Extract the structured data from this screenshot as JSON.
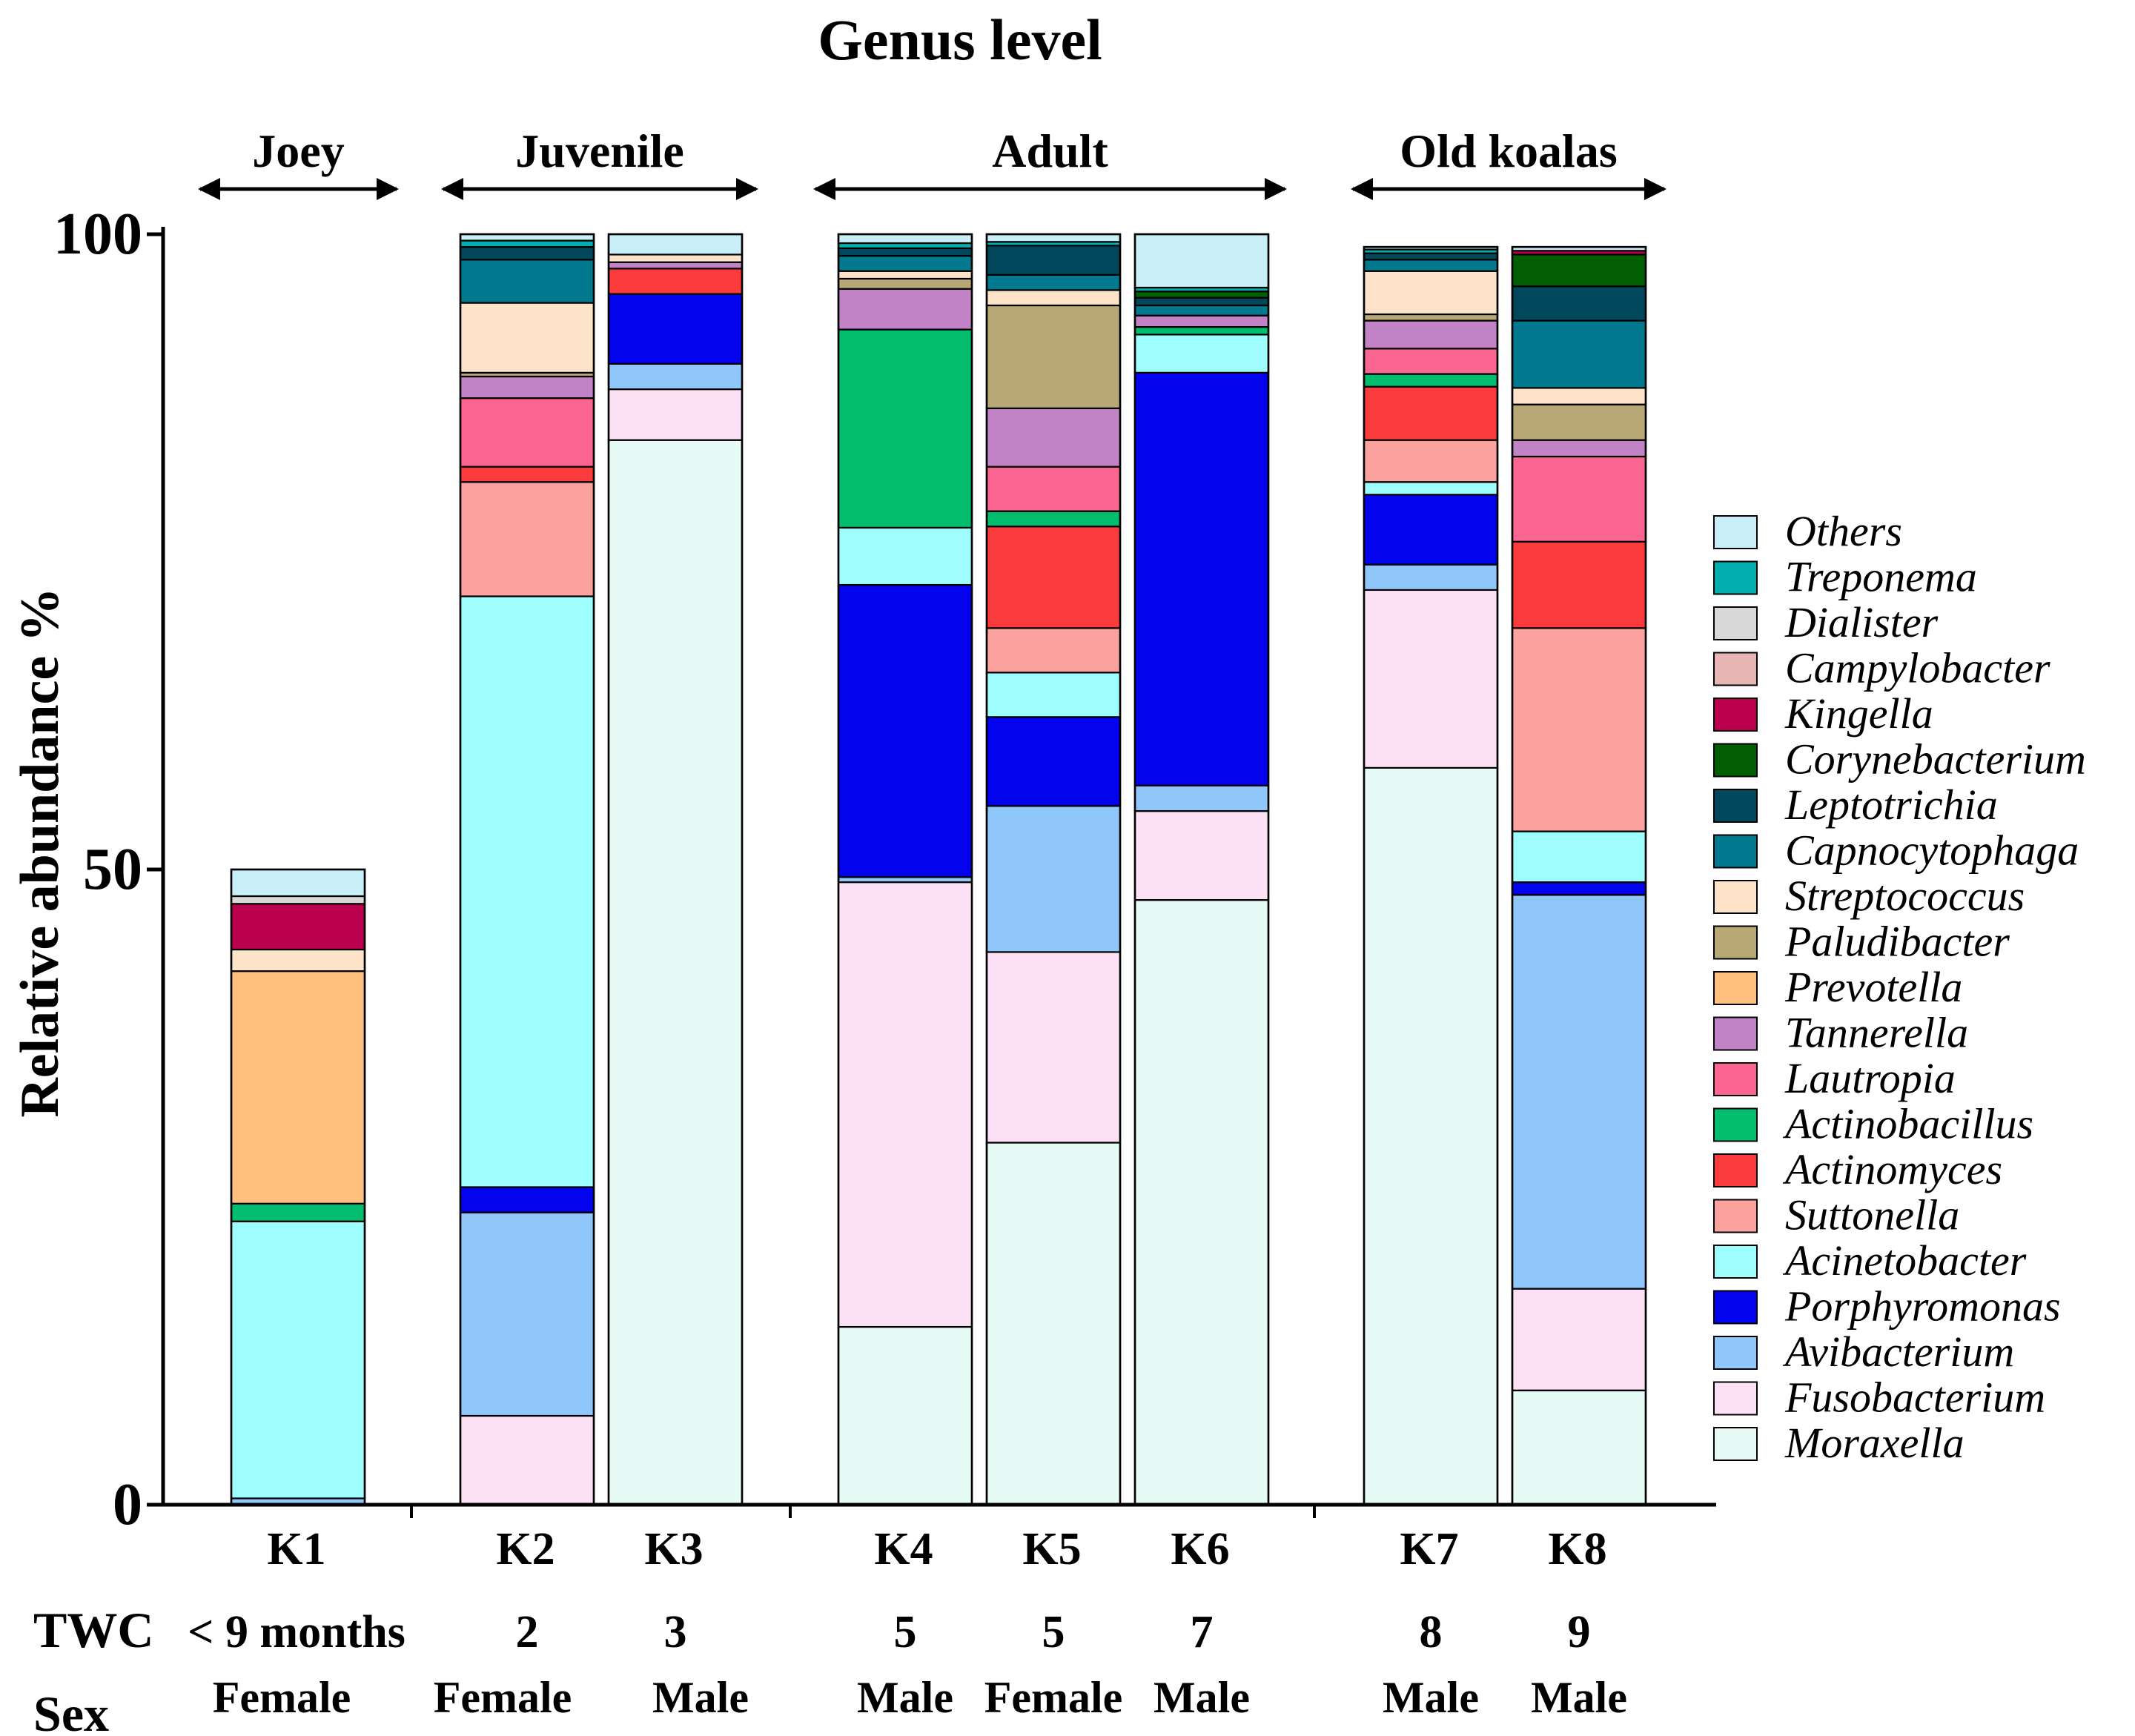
{
  "chart_data": {
    "type": "bar",
    "stacked": true,
    "title": "Genus level",
    "ylabel": "Relative abundance %",
    "ylim": [
      0,
      100
    ],
    "yticks": [
      "0",
      "50",
      "100"
    ],
    "categories": [
      "K1",
      "K2",
      "K3",
      "K4",
      "K5",
      "K6",
      "K7",
      "K8"
    ],
    "groups": [
      {
        "label": "Joey",
        "members": [
          "K1"
        ]
      },
      {
        "label": "Juvenile",
        "members": [
          "K2",
          "K3"
        ]
      },
      {
        "label": "Adult",
        "members": [
          "K4",
          "K5",
          "K6"
        ]
      },
      {
        "label": "Old koalas",
        "members": [
          "K7",
          "K8"
        ]
      }
    ],
    "info_rows": [
      {
        "label": "TWC",
        "values": [
          "< 9  months",
          "2",
          "3",
          "5",
          "5",
          "7",
          "8",
          "9"
        ]
      },
      {
        "label": "Sex",
        "values": [
          "Female",
          "Female",
          "Male",
          "Male",
          "Female",
          "Male",
          "Male",
          "Male"
        ]
      }
    ],
    "legend_position": "right",
    "series": [
      {
        "name": "Moraxella",
        "color": "#E6FBF5",
        "values": [
          0,
          0,
          83.8,
          14,
          28.5,
          47.6,
          58,
          9
        ]
      },
      {
        "name": "Fusobacterium",
        "color": "#FCE1F6",
        "values": [
          0,
          7,
          4,
          35,
          15,
          7,
          14,
          8
        ]
      },
      {
        "name": "Avibacterium",
        "color": "#8FC7FB",
        "values": [
          0.5,
          16,
          2,
          0.4,
          11.5,
          2,
          2,
          31
        ]
      },
      {
        "name": "Porphyromonas",
        "color": "#0303EE",
        "values": [
          0,
          2,
          5.5,
          23,
          7,
          32.5,
          5.5,
          1
        ]
      },
      {
        "name": "Acinetobacter",
        "color": "#9EFDFD",
        "values": [
          21.8,
          46.5,
          0,
          4.5,
          3.5,
          3,
          1,
          4
        ]
      },
      {
        "name": "Suttonella",
        "color": "#FBA19E",
        "values": [
          0,
          9,
          0,
          0,
          3.5,
          0,
          3.3,
          16
        ]
      },
      {
        "name": "Actinomyces",
        "color": "#FB3B3B",
        "values": [
          0,
          1.2,
          2,
          0,
          8,
          0,
          4.2,
          6.8
        ]
      },
      {
        "name": "Actinobacillus",
        "color": "#03BD6E",
        "values": [
          1.4,
          0,
          0,
          15.6,
          1.2,
          0.6,
          1,
          0
        ]
      },
      {
        "name": "Lautropia",
        "color": "#FB6592",
        "values": [
          0,
          5.4,
          0,
          0,
          3.5,
          0,
          2,
          6.7
        ]
      },
      {
        "name": "Tannerella",
        "color": "#C182C6",
        "values": [
          0,
          1.7,
          0.5,
          3.2,
          4.6,
          0.9,
          2.2,
          1.3
        ]
      },
      {
        "name": "Prevotella",
        "color": "#FDC07E",
        "values": [
          18.3,
          0,
          0,
          0,
          0,
          0,
          0,
          0
        ]
      },
      {
        "name": "Paludibacter",
        "color": "#B8A875",
        "values": [
          0,
          0.3,
          0,
          0.8,
          8.1,
          0,
          0.5,
          2.8
        ]
      },
      {
        "name": "Streptococcus",
        "color": "#FDE4C8",
        "values": [
          1.7,
          5.5,
          0.6,
          0.6,
          1.2,
          0,
          3.4,
          1.3
        ]
      },
      {
        "name": "Capnocytophaga",
        "color": "#02798F",
        "values": [
          0,
          3.4,
          0,
          1.2,
          1.2,
          0.8,
          0.9,
          5.3
        ]
      },
      {
        "name": "Leptotrichia",
        "color": "#02475C",
        "values": [
          0,
          1,
          0,
          0.6,
          2.3,
          0.6,
          0.5,
          2.7
        ]
      },
      {
        "name": "Corynebacterium",
        "color": "#025E02",
        "values": [
          0,
          0,
          0,
          0,
          0,
          0.5,
          0,
          2.5
        ]
      },
      {
        "name": "Kingella",
        "color": "#BB004D",
        "values": [
          3.6,
          0,
          0,
          0,
          0,
          0,
          0,
          0.3
        ]
      },
      {
        "name": "Campylobacter",
        "color": "#E8B5B5",
        "values": [
          0,
          0,
          0,
          0,
          0,
          0,
          0,
          0
        ]
      },
      {
        "name": "Dialister",
        "color": "#D8D8D8",
        "values": [
          0.6,
          0,
          0,
          0,
          0,
          0,
          0,
          0
        ]
      },
      {
        "name": "Treponema",
        "color": "#03AEAE",
        "values": [
          0,
          0.5,
          0,
          0.4,
          0.3,
          0.3,
          0.3,
          0
        ]
      },
      {
        "name": "Others",
        "color": "#C8EEF8",
        "values": [
          2.1,
          0.5,
          1.6,
          0.7,
          0.6,
          4.2,
          0.2,
          0.3
        ]
      }
    ]
  }
}
